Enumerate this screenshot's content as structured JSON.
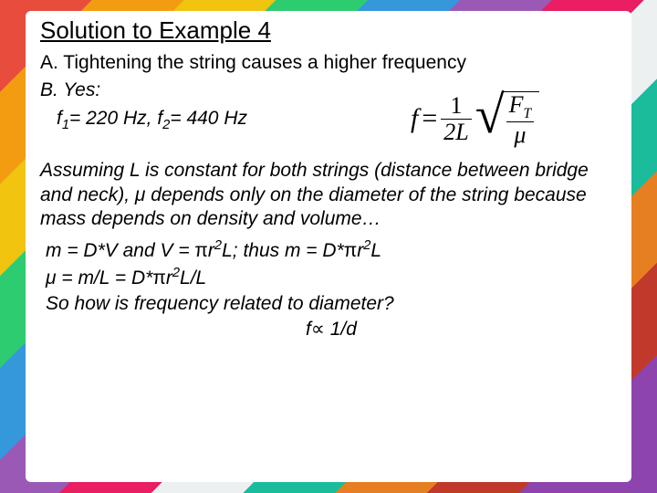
{
  "title": "Solution to Example 4",
  "lineA": "A. Tightening the string causes a higher frequency",
  "lineB": "B. Yes:",
  "freqs_prefix_f1": "f",
  "freqs_sub1": "1",
  "freqs_mid1": "= 220 Hz, ",
  "freqs_prefix_f2": "f",
  "freqs_sub2": "2",
  "freqs_mid2": "= 440 Hz",
  "formula": {
    "lhs": "f",
    "eq": "=",
    "num": "1",
    "den": "2L",
    "rt_num": "F",
    "rt_num_sub": "T",
    "rt_den": "μ"
  },
  "para": "Assuming L is constant for both strings (distance between bridge and neck), μ depends only on the diameter of the string because mass depends on density and volume…",
  "eq1_a": "m = D*V and V = ",
  "eq1_pi1": "π",
  "eq1_b": "r",
  "eq1_sup1": "2",
  "eq1_c": "L; thus m = D*",
  "eq1_pi2": "π",
  "eq1_d": "r",
  "eq1_sup2": "2",
  "eq1_e": "L",
  "eq2_a": "μ = m/L = D*",
  "eq2_pi": "π",
  "eq2_b": "r",
  "eq2_sup": "2",
  "eq2_c": "L/L",
  "q": "So how is frequency related to diameter?",
  "final_a": "f",
  "final_prop": "∝",
  "final_b": " 1/d"
}
